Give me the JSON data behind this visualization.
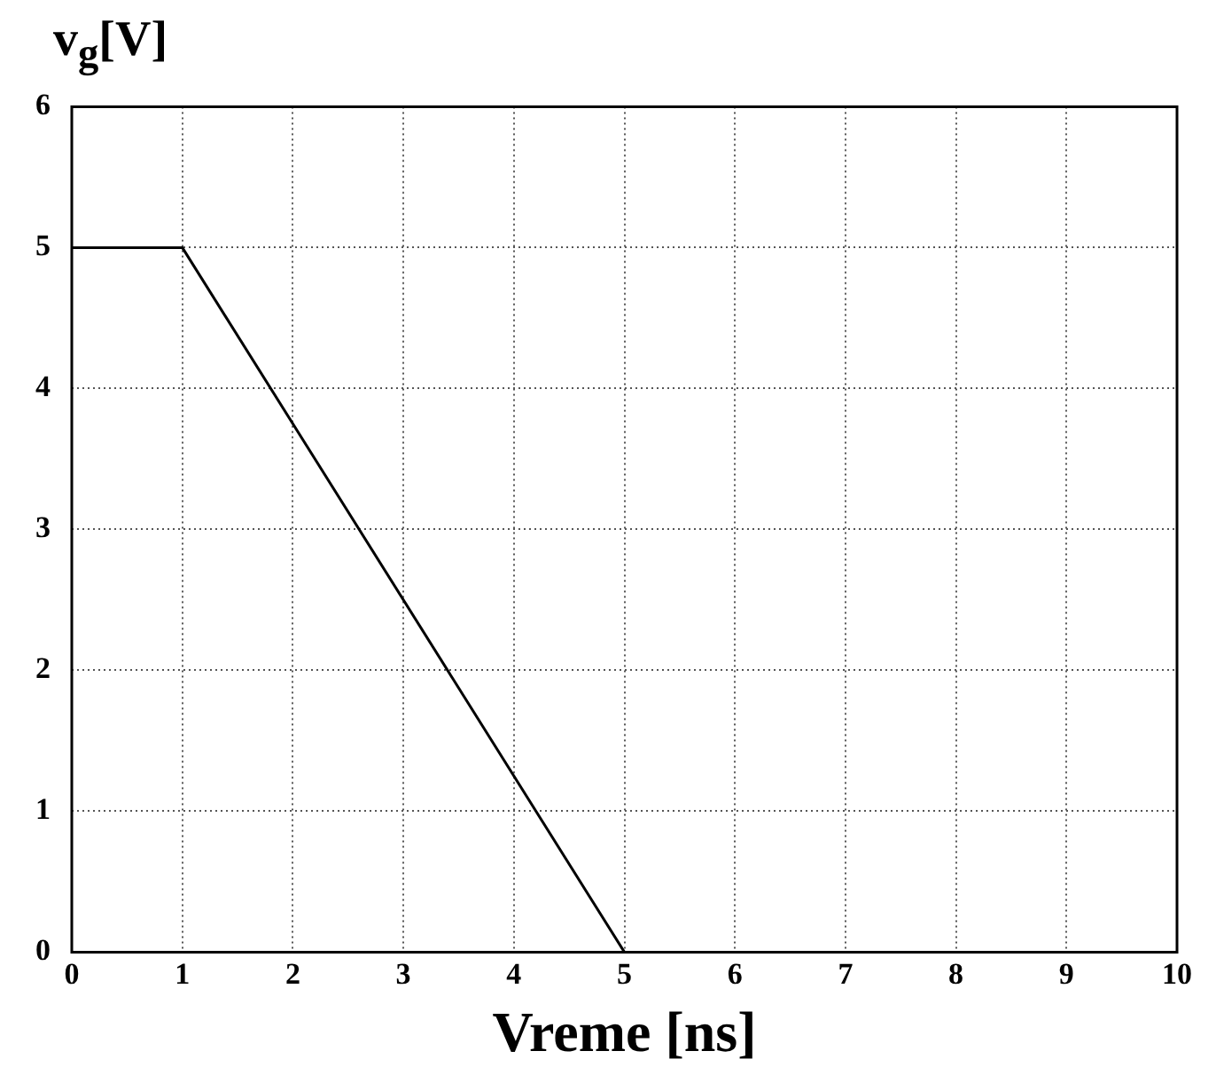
{
  "chart_data": {
    "type": "line",
    "ylabel": "v$_{g}$[V]",
    "xlabel": "Vreme [ns]",
    "x": [
      0,
      1,
      5,
      10
    ],
    "series": [
      {
        "color": "#000000",
        "values": [
          5,
          5,
          0,
          0
        ]
      }
    ],
    "xlim": [
      0,
      10
    ],
    "xticks": [
      0,
      1,
      2,
      3,
      4,
      5,
      6,
      7,
      8,
      9,
      10
    ],
    "ylim": [
      0,
      6
    ],
    "yticks": [
      0,
      1,
      2,
      3,
      4,
      5,
      6
    ],
    "grid": true,
    "legend": false,
    "marker": "none",
    "line_style": "solid"
  }
}
